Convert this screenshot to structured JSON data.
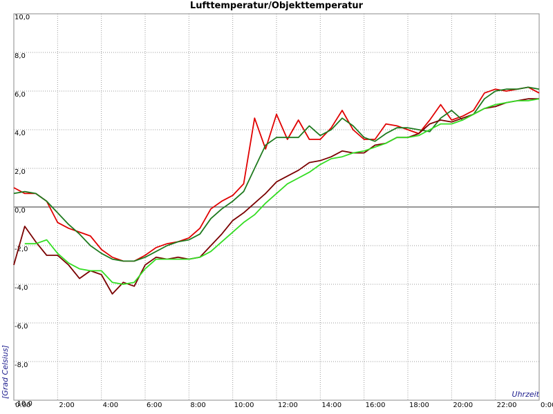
{
  "chart_data": {
    "type": "line",
    "title": "Lufttemperatur/Objekttemperatur",
    "y_label": "[Grad Celsius]",
    "x_label": "Uhrzeit",
    "x": [
      0,
      0.5,
      1,
      1.5,
      2,
      2.5,
      3,
      3.5,
      4,
      4.5,
      5,
      5.5,
      6,
      6.5,
      7,
      7.5,
      8,
      8.5,
      9,
      9.5,
      10,
      10.5,
      11,
      11.5,
      12,
      12.5,
      13,
      13.5,
      14,
      14.5,
      15,
      15.5,
      16,
      16.5,
      17,
      17.5,
      18,
      18.5,
      19,
      19.5,
      20,
      20.5,
      21,
      21.5,
      22,
      22.5,
      23,
      23.5,
      24
    ],
    "series": [
      {
        "color": "#e00000",
        "values": [
          1.0,
          0.7,
          0.7,
          0.3,
          -0.8,
          -1.1,
          -1.3,
          -1.5,
          -2.2,
          -2.6,
          -2.8,
          -2.8,
          -2.5,
          -2.1,
          -1.9,
          -1.8,
          -1.6,
          -1.1,
          -0.1,
          0.3,
          0.6,
          1.2,
          4.6,
          3.0,
          4.8,
          3.5,
          4.5,
          3.5,
          3.5,
          4.1,
          5.0,
          4.0,
          3.5,
          3.5,
          4.3,
          4.2,
          4.0,
          3.8,
          4.5,
          5.3,
          4.5,
          4.7,
          5.0,
          5.9,
          6.1,
          6.0,
          6.1,
          6.2,
          5.9
        ]
      },
      {
        "color": "#1e7a1e",
        "values": [
          0.7,
          0.8,
          0.7,
          0.3,
          -0.3,
          -0.9,
          -1.4,
          -2.0,
          -2.4,
          -2.7,
          -2.8,
          -2.8,
          -2.6,
          -2.3,
          -2.0,
          -1.8,
          -1.7,
          -1.4,
          -0.6,
          -0.1,
          0.3,
          0.8,
          2.0,
          3.2,
          3.6,
          3.6,
          3.6,
          4.2,
          3.7,
          4.0,
          4.6,
          4.2,
          3.6,
          3.4,
          3.8,
          4.1,
          4.1,
          4.0,
          3.9,
          4.6,
          5.0,
          4.5,
          4.8,
          5.6,
          6.0,
          6.1,
          6.1,
          6.2,
          6.1
        ]
      },
      {
        "color": "#7a0000",
        "values": [
          -3.0,
          -1.0,
          -1.8,
          -2.5,
          -2.5,
          -3.0,
          -3.7,
          -3.3,
          -3.5,
          -4.5,
          -3.9,
          -4.1,
          -3.0,
          -2.6,
          -2.7,
          -2.6,
          -2.7,
          -2.6,
          -2.0,
          -1.4,
          -0.7,
          -0.3,
          0.2,
          0.7,
          1.3,
          1.6,
          1.9,
          2.3,
          2.4,
          2.6,
          2.9,
          2.8,
          2.8,
          3.2,
          3.3,
          3.6,
          3.6,
          3.8,
          4.3,
          4.5,
          4.4,
          4.6,
          4.8,
          5.1,
          5.2,
          5.4,
          5.5,
          5.6,
          5.6
        ]
      },
      {
        "color": "#33dd22",
        "values": [
          null,
          -1.9,
          -1.9,
          -1.7,
          -2.4,
          -2.9,
          -3.2,
          -3.3,
          -3.3,
          -3.9,
          -4.0,
          -3.9,
          -3.2,
          -2.7,
          -2.7,
          -2.7,
          -2.7,
          -2.6,
          -2.3,
          -1.8,
          -1.3,
          -0.8,
          -0.4,
          0.2,
          0.7,
          1.2,
          1.5,
          1.8,
          2.2,
          2.5,
          2.6,
          2.8,
          2.9,
          3.1,
          3.3,
          3.6,
          3.6,
          3.7,
          4.0,
          4.3,
          4.3,
          4.5,
          4.8,
          5.1,
          5.3,
          5.4,
          5.5,
          5.5,
          5.6
        ]
      }
    ],
    "xlim": [
      0,
      24
    ],
    "xticks": [
      {
        "value": 0,
        "label": "0:00"
      },
      {
        "value": 2,
        "label": "2:00"
      },
      {
        "value": 4,
        "label": "4:00"
      },
      {
        "value": 6,
        "label": "6:00"
      },
      {
        "value": 8,
        "label": "8:00"
      },
      {
        "value": 10,
        "label": "10:00"
      },
      {
        "value": 12,
        "label": "12:00"
      },
      {
        "value": 14,
        "label": "14:00"
      },
      {
        "value": 16,
        "label": "16:00"
      },
      {
        "value": 18,
        "label": "18:00"
      },
      {
        "value": 20,
        "label": "20:00"
      },
      {
        "value": 22,
        "label": "22:00"
      },
      {
        "value": 24,
        "label": "0:00"
      }
    ],
    "ylim": [
      -10,
      10
    ],
    "yticks": [
      {
        "value": 10,
        "label": "10,0"
      },
      {
        "value": 8,
        "label": "8,0"
      },
      {
        "value": 6,
        "label": "6,0"
      },
      {
        "value": 4,
        "label": "4,0"
      },
      {
        "value": 2,
        "label": "2,0"
      },
      {
        "value": 0,
        "label": "0,0"
      },
      {
        "value": -2,
        "label": "-2,0"
      },
      {
        "value": -4,
        "label": "-4,0"
      },
      {
        "value": -6,
        "label": "-6,0"
      },
      {
        "value": -8,
        "label": "-8,0"
      },
      {
        "value": -10,
        "label": "-10,0"
      }
    ],
    "grid": true
  }
}
